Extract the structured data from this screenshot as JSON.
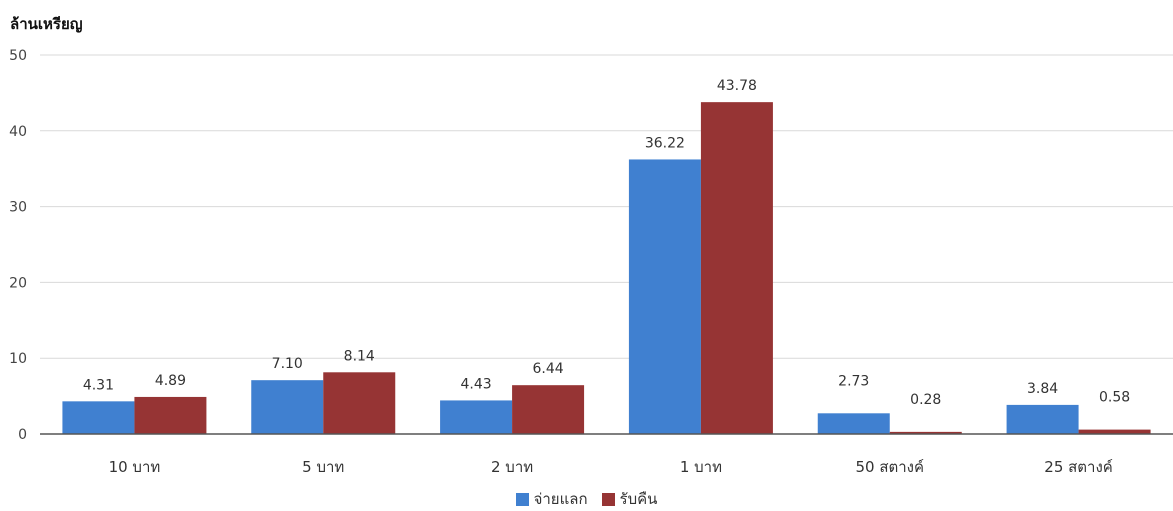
{
  "chart_data": {
    "type": "bar",
    "unit_label": "ล้านเหรียญ",
    "categories": [
      "10 บาท",
      "5 บาท",
      "2 บาท",
      "1 บาท",
      "50 สตางค์",
      "25 สตางค์"
    ],
    "series": [
      {
        "name": "จ่ายแลก",
        "color": "#4080d0",
        "values": [
          4.31,
          7.1,
          4.43,
          36.22,
          2.73,
          3.84
        ]
      },
      {
        "name": "รับคืน",
        "color": "#963434",
        "values": [
          4.89,
          8.14,
          6.44,
          43.78,
          0.28,
          0.58
        ]
      }
    ],
    "data_labels": [
      [
        "4.31",
        "7.10",
        "4.43",
        "36.22",
        "2.73",
        "3.84"
      ],
      [
        "4.89",
        "8.14",
        "6.44",
        "43.78",
        "0.28",
        "0.58"
      ]
    ],
    "ylim": [
      0,
      50
    ],
    "yticks": [
      0,
      10,
      20,
      30,
      40,
      50
    ],
    "grid": true,
    "legend_position": "bottom-center"
  }
}
